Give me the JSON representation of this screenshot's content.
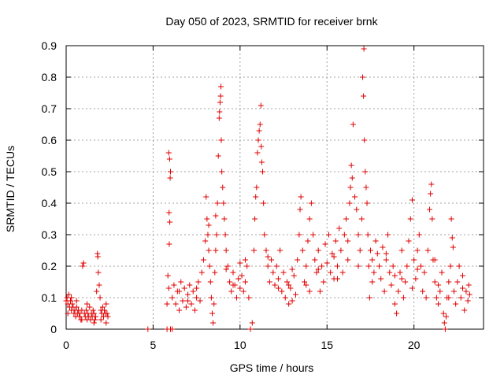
{
  "chart_data": {
    "type": "scatter",
    "title": "Day 050 of 2023, SRMTID for receiver brnk",
    "xlabel": "GPS time / hours",
    "ylabel": "SRMTID / TECUs",
    "xlim": [
      0,
      24
    ],
    "ylim": [
      0,
      0.9
    ],
    "xticks": [
      {
        "value": 0,
        "label": "0"
      },
      {
        "value": 5,
        "label": "5"
      },
      {
        "value": 10,
        "label": "10"
      },
      {
        "value": 15,
        "label": "15"
      },
      {
        "value": 20,
        "label": "20"
      }
    ],
    "yticks": [
      {
        "value": 0,
        "label": "0"
      },
      {
        "value": 0.1,
        "label": "0.1"
      },
      {
        "value": 0.2,
        "label": "0.2"
      },
      {
        "value": 0.3,
        "label": "0.3"
      },
      {
        "value": 0.4,
        "label": "0.4"
      },
      {
        "value": 0.5,
        "label": "0.5"
      },
      {
        "value": 0.6,
        "label": "0.6"
      },
      {
        "value": 0.7,
        "label": "0.7"
      },
      {
        "value": 0.8,
        "label": "0.8"
      },
      {
        "value": 0.9,
        "label": "0.9"
      }
    ],
    "grid": true,
    "marker": "+",
    "color": "#e00000",
    "series": [
      {
        "name": "SRMTID",
        "points": [
          [
            0.0,
            0.09
          ],
          [
            0.05,
            0.1
          ],
          [
            0.1,
            0.08
          ],
          [
            0.15,
            0.11
          ],
          [
            0.2,
            0.07
          ],
          [
            0.25,
            0.09
          ],
          [
            0.3,
            0.06
          ],
          [
            0.35,
            0.08
          ],
          [
            0.4,
            0.07
          ],
          [
            0.45,
            0.05
          ],
          [
            0.5,
            0.06
          ],
          [
            0.55,
            0.04
          ],
          [
            0.6,
            0.07
          ],
          [
            0.65,
            0.05
          ],
          [
            0.7,
            0.06
          ],
          [
            0.75,
            0.04
          ],
          [
            0.8,
            0.05
          ],
          [
            0.85,
            0.03
          ],
          [
            0.9,
            0.06
          ],
          [
            0.95,
            0.2
          ],
          [
            1.0,
            0.21
          ],
          [
            1.05,
            0.05
          ],
          [
            1.1,
            0.04
          ],
          [
            1.15,
            0.06
          ],
          [
            1.2,
            0.03
          ],
          [
            1.25,
            0.05
          ],
          [
            1.3,
            0.04
          ],
          [
            1.35,
            0.07
          ],
          [
            1.4,
            0.03
          ],
          [
            1.45,
            0.05
          ],
          [
            1.5,
            0.04
          ],
          [
            1.55,
            0.06
          ],
          [
            1.6,
            0.05
          ],
          [
            1.65,
            0.03
          ],
          [
            1.7,
            0.04
          ],
          [
            1.75,
            0.12
          ],
          [
            1.8,
            0.24
          ],
          [
            1.82,
            0.23
          ],
          [
            1.85,
            0.18
          ],
          [
            1.9,
            0.14
          ],
          [
            1.95,
            0.1
          ],
          [
            2.0,
            0.06
          ],
          [
            2.05,
            0.05
          ],
          [
            2.1,
            0.07
          ],
          [
            2.15,
            0.04
          ],
          [
            2.2,
            0.06
          ],
          [
            2.25,
            0.05
          ],
          [
            2.3,
            0.08
          ],
          [
            2.35,
            0.05
          ],
          [
            2.4,
            0.04
          ],
          [
            0.1,
            0.05
          ],
          [
            0.3,
            0.1
          ],
          [
            0.6,
            0.09
          ],
          [
            0.9,
            0.03
          ],
          [
            1.2,
            0.08
          ],
          [
            1.6,
            0.02
          ],
          [
            2.0,
            0.03
          ],
          [
            2.3,
            0.02
          ],
          [
            4.7,
            0.0
          ],
          [
            5.8,
            0.0
          ],
          [
            6.0,
            0.0
          ],
          [
            6.1,
            0.0
          ],
          [
            5.9,
            0.56
          ],
          [
            5.95,
            0.54
          ],
          [
            6.0,
            0.5
          ],
          [
            5.98,
            0.48
          ],
          [
            5.92,
            0.37
          ],
          [
            5.96,
            0.34
          ],
          [
            5.93,
            0.27
          ],
          [
            5.85,
            0.17
          ],
          [
            5.9,
            0.13
          ],
          [
            5.8,
            0.08
          ],
          [
            6.1,
            0.1
          ],
          [
            6.2,
            0.14
          ],
          [
            6.3,
            0.08
          ],
          [
            6.4,
            0.12
          ],
          [
            6.5,
            0.06
          ],
          [
            6.6,
            0.15
          ],
          [
            6.7,
            0.09
          ],
          [
            6.8,
            0.13
          ],
          [
            6.9,
            0.07
          ],
          [
            7.0,
            0.11
          ],
          [
            7.1,
            0.14
          ],
          [
            7.2,
            0.08
          ],
          [
            7.3,
            0.12
          ],
          [
            7.4,
            0.06
          ],
          [
            7.5,
            0.1
          ],
          [
            7.6,
            0.15
          ],
          [
            7.7,
            0.09
          ],
          [
            7.8,
            0.18
          ],
          [
            7.9,
            0.22
          ],
          [
            8.0,
            0.28
          ],
          [
            8.05,
            0.42
          ],
          [
            8.1,
            0.35
          ],
          [
            8.15,
            0.3
          ],
          [
            8.2,
            0.25
          ],
          [
            8.25,
            0.2
          ],
          [
            8.3,
            0.15
          ],
          [
            8.35,
            0.1
          ],
          [
            8.4,
            0.05
          ],
          [
            8.45,
            0.02
          ],
          [
            8.5,
            0.08
          ],
          [
            8.55,
            0.18
          ],
          [
            8.6,
            0.25
          ],
          [
            8.65,
            0.3
          ],
          [
            8.7,
            0.4
          ],
          [
            8.75,
            0.55
          ],
          [
            8.8,
            0.67
          ],
          [
            8.82,
            0.69
          ],
          [
            8.85,
            0.72
          ],
          [
            8.88,
            0.74
          ],
          [
            8.9,
            0.77
          ],
          [
            8.92,
            0.6
          ],
          [
            8.95,
            0.5
          ],
          [
            9.0,
            0.45
          ],
          [
            9.05,
            0.4
          ],
          [
            9.1,
            0.35
          ],
          [
            9.15,
            0.3
          ],
          [
            9.2,
            0.25
          ],
          [
            9.3,
            0.2
          ],
          [
            9.4,
            0.15
          ],
          [
            9.5,
            0.12
          ],
          [
            9.6,
            0.18
          ],
          [
            9.7,
            0.14
          ],
          [
            9.8,
            0.1
          ],
          [
            9.9,
            0.16
          ],
          [
            10.0,
            0.13
          ],
          [
            10.1,
            0.17
          ],
          [
            10.2,
            0.12
          ],
          [
            10.3,
            0.15
          ],
          [
            10.4,
            0.2
          ],
          [
            10.5,
            0.1
          ],
          [
            10.6,
            0.0
          ],
          [
            10.7,
            0.02
          ],
          [
            10.8,
            0.25
          ],
          [
            10.85,
            0.35
          ],
          [
            10.9,
            0.42
          ],
          [
            10.95,
            0.45
          ],
          [
            11.0,
            0.56
          ],
          [
            11.05,
            0.6
          ],
          [
            11.1,
            0.63
          ],
          [
            11.15,
            0.65
          ],
          [
            11.2,
            0.71
          ],
          [
            11.22,
            0.58
          ],
          [
            11.25,
            0.53
          ],
          [
            11.3,
            0.5
          ],
          [
            11.35,
            0.4
          ],
          [
            11.4,
            0.3
          ],
          [
            11.5,
            0.25
          ],
          [
            11.6,
            0.2
          ],
          [
            11.7,
            0.15
          ],
          [
            11.8,
            0.22
          ],
          [
            11.9,
            0.18
          ],
          [
            12.0,
            0.14
          ],
          [
            12.1,
            0.2
          ],
          [
            12.2,
            0.16
          ],
          [
            12.3,
            0.25
          ],
          [
            12.4,
            0.12
          ],
          [
            12.5,
            0.18
          ],
          [
            12.6,
            0.1
          ],
          [
            12.7,
            0.15
          ],
          [
            12.8,
            0.08
          ],
          [
            12.9,
            0.13
          ],
          [
            13.0,
            0.09
          ],
          [
            13.1,
            0.17
          ],
          [
            13.2,
            0.11
          ],
          [
            13.3,
            0.22
          ],
          [
            13.4,
            0.3
          ],
          [
            13.45,
            0.38
          ],
          [
            13.5,
            0.42
          ],
          [
            13.6,
            0.25
          ],
          [
            13.7,
            0.15
          ],
          [
            13.8,
            0.2
          ],
          [
            13.9,
            0.28
          ],
          [
            14.0,
            0.35
          ],
          [
            14.1,
            0.4
          ],
          [
            14.2,
            0.3
          ],
          [
            14.3,
            0.22
          ],
          [
            14.4,
            0.18
          ],
          [
            14.5,
            0.25
          ],
          [
            14.6,
            0.12
          ],
          [
            14.7,
            0.2
          ],
          [
            14.8,
            0.15
          ],
          [
            14.9,
            0.27
          ],
          [
            15.0,
            0.21
          ],
          [
            15.1,
            0.3
          ],
          [
            15.2,
            0.18
          ],
          [
            15.3,
            0.24
          ],
          [
            15.4,
            0.16
          ],
          [
            15.5,
            0.28
          ],
          [
            15.6,
            0.2
          ],
          [
            15.7,
            0.32
          ],
          [
            15.8,
            0.25
          ],
          [
            15.9,
            0.18
          ],
          [
            16.0,
            0.3
          ],
          [
            16.1,
            0.35
          ],
          [
            16.2,
            0.22
          ],
          [
            16.3,
            0.4
          ],
          [
            16.35,
            0.45
          ],
          [
            16.4,
            0.52
          ],
          [
            16.45,
            0.48
          ],
          [
            16.5,
            0.65
          ],
          [
            16.6,
            0.42
          ],
          [
            16.7,
            0.38
          ],
          [
            16.8,
            0.3
          ],
          [
            16.9,
            0.25
          ],
          [
            17.0,
            0.35
          ],
          [
            17.05,
            0.8
          ],
          [
            17.1,
            0.74
          ],
          [
            17.12,
            0.89
          ],
          [
            17.15,
            0.6
          ],
          [
            17.2,
            0.5
          ],
          [
            17.25,
            0.45
          ],
          [
            17.3,
            0.4
          ],
          [
            17.35,
            0.3
          ],
          [
            17.4,
            0.2
          ],
          [
            17.45,
            0.1
          ],
          [
            17.5,
            0.25
          ],
          [
            17.6,
            0.22
          ],
          [
            17.7,
            0.18
          ],
          [
            17.8,
            0.28
          ],
          [
            17.9,
            0.24
          ],
          [
            18.0,
            0.2
          ],
          [
            18.1,
            0.16
          ],
          [
            18.2,
            0.26
          ],
          [
            18.3,
            0.12
          ],
          [
            18.4,
            0.22
          ],
          [
            18.5,
            0.3
          ],
          [
            18.6,
            0.18
          ],
          [
            18.7,
            0.14
          ],
          [
            18.8,
            0.2
          ],
          [
            18.9,
            0.08
          ],
          [
            19.0,
            0.05
          ],
          [
            19.1,
            0.12
          ],
          [
            19.2,
            0.18
          ],
          [
            19.3,
            0.25
          ],
          [
            19.4,
            0.1
          ],
          [
            19.5,
            0.15
          ],
          [
            19.6,
            0.2
          ],
          [
            19.7,
            0.28
          ],
          [
            19.8,
            0.35
          ],
          [
            19.9,
            0.41
          ],
          [
            20.0,
            0.22
          ],
          [
            20.1,
            0.16
          ],
          [
            20.2,
            0.25
          ],
          [
            20.3,
            0.3
          ],
          [
            20.4,
            0.2
          ],
          [
            20.5,
            0.12
          ],
          [
            20.6,
            0.18
          ],
          [
            20.7,
            0.1
          ],
          [
            20.8,
            0.25
          ],
          [
            20.9,
            0.38
          ],
          [
            20.95,
            0.43
          ],
          [
            21.0,
            0.46
          ],
          [
            21.05,
            0.35
          ],
          [
            21.1,
            0.22
          ],
          [
            21.2,
            0.15
          ],
          [
            21.3,
            0.1
          ],
          [
            21.4,
            0.08
          ],
          [
            21.5,
            0.12
          ],
          [
            21.6,
            0.18
          ],
          [
            21.7,
            0.05
          ],
          [
            21.75,
            0.02
          ],
          [
            21.8,
            0.0
          ],
          [
            21.85,
            0.04
          ],
          [
            21.9,
            0.1
          ],
          [
            22.0,
            0.15
          ],
          [
            22.1,
            0.2
          ],
          [
            22.15,
            0.35
          ],
          [
            22.2,
            0.29
          ],
          [
            22.25,
            0.26
          ],
          [
            22.3,
            0.12
          ],
          [
            22.4,
            0.08
          ],
          [
            22.5,
            0.15
          ],
          [
            22.6,
            0.2
          ],
          [
            22.7,
            0.1
          ],
          [
            22.8,
            0.13
          ],
          [
            22.9,
            0.06
          ],
          [
            23.0,
            0.12
          ],
          [
            23.1,
            0.09
          ],
          [
            23.15,
            0.14
          ],
          [
            23.2,
            0.11
          ],
          [
            6.5,
            0.12
          ],
          [
            7.0,
            0.09
          ],
          [
            7.5,
            0.13
          ],
          [
            8.2,
            0.33
          ],
          [
            8.6,
            0.36
          ],
          [
            9.2,
            0.19
          ],
          [
            9.6,
            0.14
          ],
          [
            10.3,
            0.22
          ],
          [
            11.6,
            0.23
          ],
          [
            12.2,
            0.13
          ],
          [
            13.0,
            0.19
          ],
          [
            13.8,
            0.14
          ],
          [
            14.5,
            0.19
          ],
          [
            15.4,
            0.23
          ],
          [
            16.2,
            0.28
          ],
          [
            16.8,
            0.2
          ],
          [
            17.6,
            0.15
          ],
          [
            18.4,
            0.24
          ],
          [
            19.3,
            0.16
          ],
          [
            20.2,
            0.19
          ],
          [
            21.2,
            0.22
          ],
          [
            22.0,
            0.1
          ],
          [
            22.8,
            0.17
          ],
          [
            12.8,
            0.14
          ],
          [
            14.0,
            0.12
          ],
          [
            15.6,
            0.16
          ],
          [
            18.9,
            0.17
          ],
          [
            19.9,
            0.13
          ],
          [
            21.4,
            0.14
          ],
          [
            10.0,
            0.21
          ]
        ]
      }
    ]
  }
}
